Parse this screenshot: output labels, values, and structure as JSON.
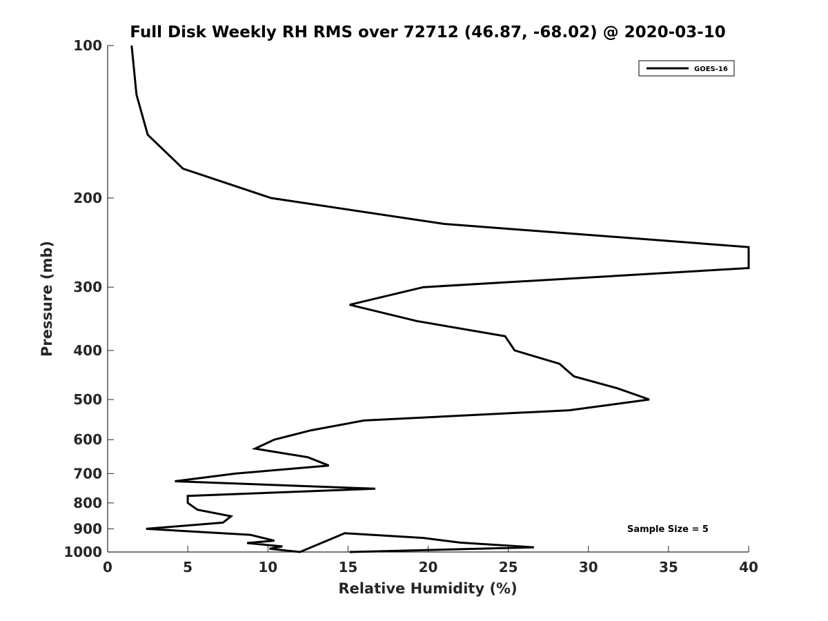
{
  "chart_data": {
    "type": "line",
    "title": "Full Disk Weekly RH RMS over 72712 (46.87, -68.02) @ 2020-03-10",
    "xlabel": "Relative Humidity (%)",
    "ylabel": "Pressure (mb)",
    "xlim": [
      0,
      40
    ],
    "ylim": [
      100,
      1000
    ],
    "y_scale": "log",
    "y_reversed": true,
    "x_ticks": [
      "0",
      "5",
      "10",
      "15",
      "20",
      "25",
      "30",
      "35",
      "40"
    ],
    "y_ticks": [
      "100",
      "200",
      "300",
      "400",
      "500",
      "600",
      "700",
      "800",
      "900",
      "1000"
    ],
    "grid": false,
    "legend_position": "top-right",
    "annotation": "Sample Size = 5",
    "series": [
      {
        "name": "GOES-16",
        "color": "#000000",
        "points": [
          [
            1.5,
            100
          ],
          [
            1.8,
            125
          ],
          [
            2.5,
            150
          ],
          [
            4.7,
            175
          ],
          [
            10.2,
            200
          ],
          [
            21,
            225
          ],
          [
            40,
            250
          ],
          [
            40,
            275
          ],
          [
            19.7,
            300
          ],
          [
            15.1,
            325
          ],
          [
            19.3,
            350
          ],
          [
            24.8,
            375
          ],
          [
            25.4,
            400
          ],
          [
            28.2,
            425
          ],
          [
            29.1,
            450
          ],
          [
            31.8,
            475
          ],
          [
            33.8,
            500
          ],
          [
            28.8,
            525
          ],
          [
            16,
            550
          ],
          [
            12.7,
            575
          ],
          [
            10.4,
            600
          ],
          [
            9.2,
            625
          ],
          [
            12.5,
            650
          ],
          [
            13.8,
            675
          ],
          [
            8,
            700
          ],
          [
            4.2,
            725
          ],
          [
            16.7,
            750
          ],
          [
            5,
            775
          ],
          [
            5,
            800
          ],
          [
            5.6,
            825
          ],
          [
            7.7,
            850
          ],
          [
            7.2,
            875
          ],
          [
            2.4,
            900
          ],
          [
            8.9,
            925
          ],
          [
            10.4,
            950
          ],
          [
            8.7,
            960
          ],
          [
            10.9,
            975
          ],
          [
            10.1,
            985
          ],
          [
            12,
            1000
          ]
        ]
      }
    ],
    "series_tail": [
      [
        12,
        1000
      ],
      [
        14.8,
        1010
      ],
      [
        19.7,
        1020
      ],
      [
        22,
        1030
      ],
      [
        26.6,
        1040
      ],
      [
        15.1,
        1050
      ]
    ]
  }
}
